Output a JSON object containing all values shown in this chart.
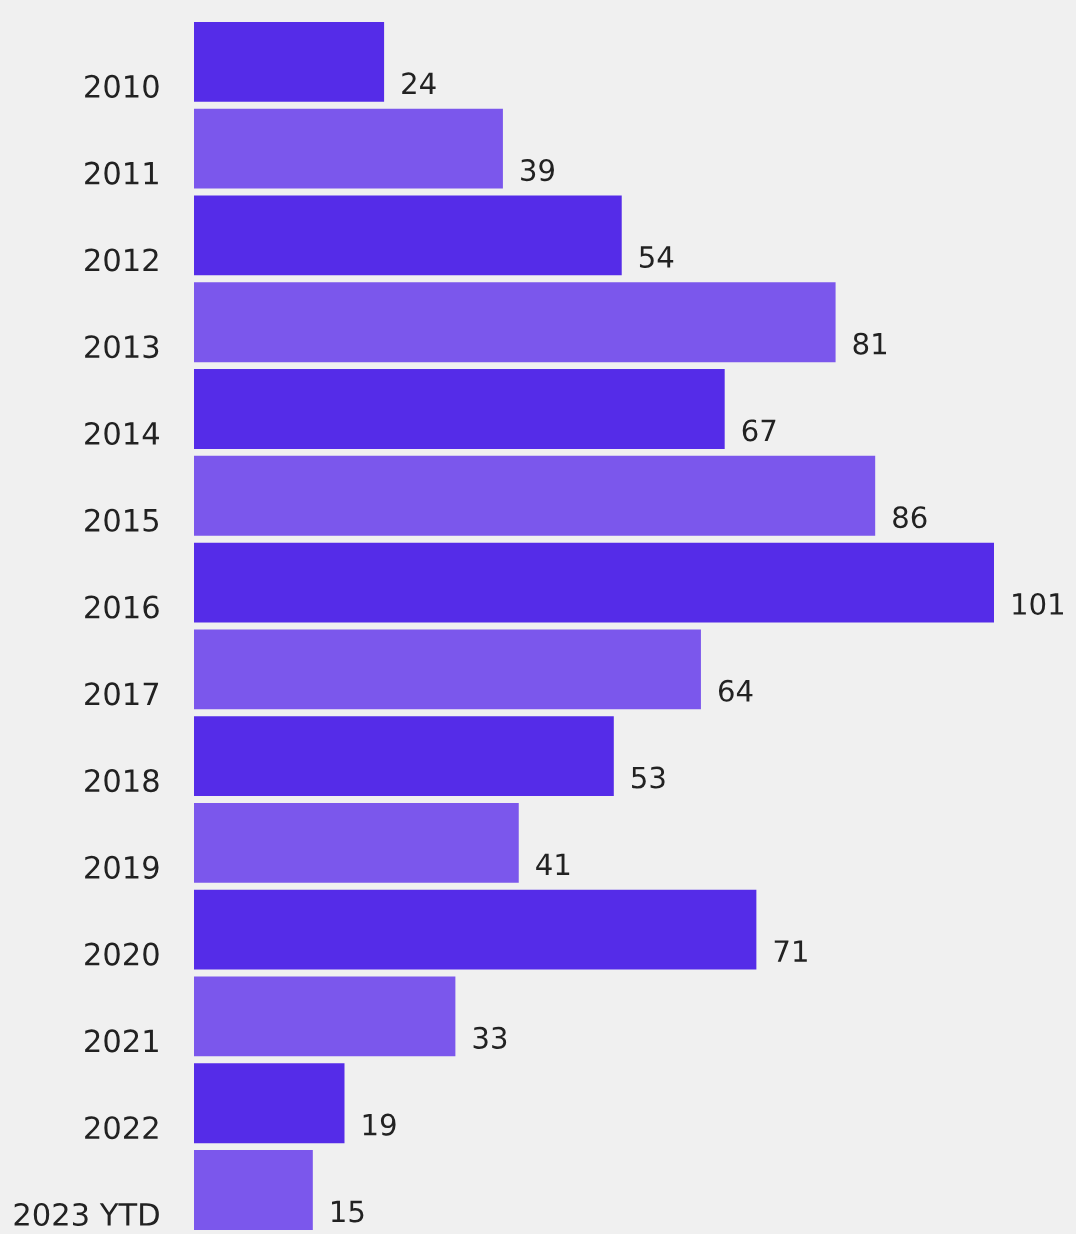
{
  "chart_data": {
    "type": "bar",
    "orientation": "horizontal",
    "categories": [
      "2010",
      "2011",
      "2012",
      "2013",
      "2014",
      "2015",
      "2016",
      "2017",
      "2018",
      "2019",
      "2020",
      "2021",
      "2022",
      "2023 YTD"
    ],
    "values": [
      24,
      39,
      54,
      81,
      67,
      86,
      101,
      64,
      53,
      41,
      71,
      33,
      19,
      15
    ],
    "colors": [
      "#552ce8",
      "#7b57ec",
      "#552ce8",
      "#7b57ec",
      "#552ce8",
      "#7b57ec",
      "#552ce8",
      "#7b57ec",
      "#552ce8",
      "#7b57ec",
      "#552ce8",
      "#7b57ec",
      "#552ce8",
      "#7b57ec"
    ],
    "data_labels": true,
    "grid": false,
    "legend": false,
    "tick_labels": "y"
  }
}
